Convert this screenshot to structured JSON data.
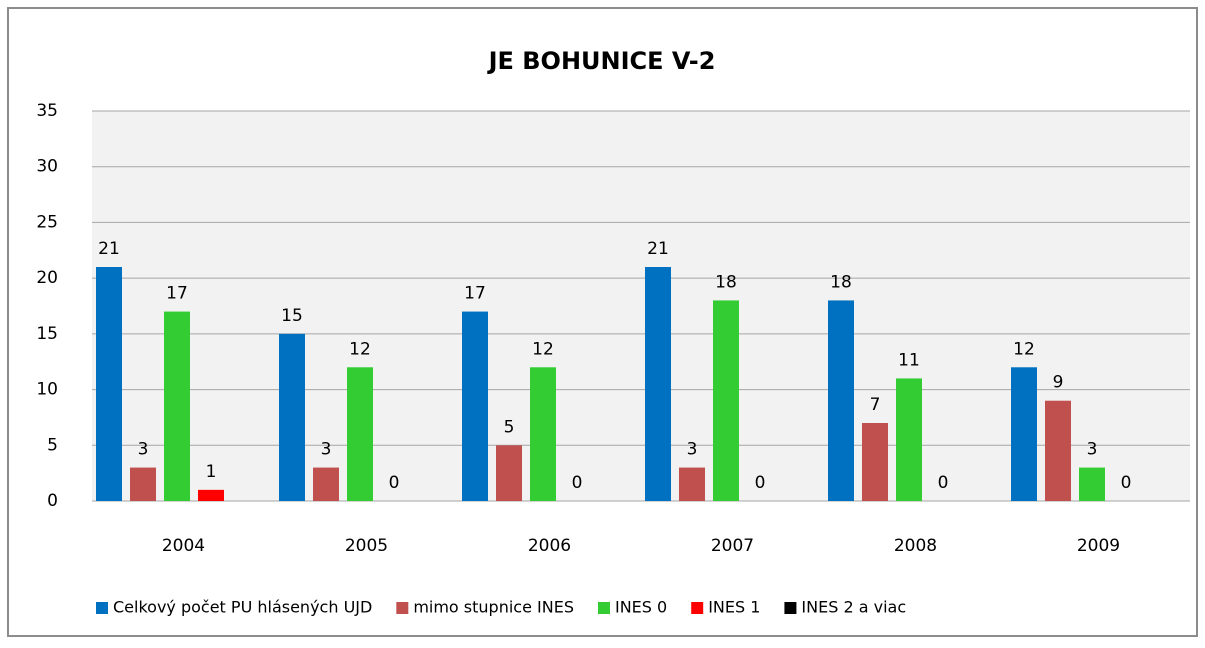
{
  "chart_data": {
    "type": "bar",
    "title": "JE BOHUNICE V-2",
    "categories": [
      "2004",
      "2005",
      "2006",
      "2007",
      "2008",
      "2009"
    ],
    "series": [
      {
        "name": "Celkový počet PU hlásených UJD",
        "color": "#0070c0",
        "values": [
          21,
          15,
          17,
          21,
          18,
          12
        ]
      },
      {
        "name": "mimo stupnice INES",
        "color": "#c0504d",
        "values": [
          3,
          3,
          5,
          3,
          7,
          9
        ]
      },
      {
        "name": "INES 0",
        "color": "#33cc33",
        "values": [
          17,
          12,
          12,
          18,
          11,
          3
        ]
      },
      {
        "name": "INES 1",
        "color": "#ff0000",
        "values": [
          1,
          0,
          0,
          0,
          0,
          0
        ]
      },
      {
        "name": "INES 2 a viac",
        "color": "#000000",
        "values": [
          null,
          null,
          null,
          null,
          null,
          null
        ]
      }
    ],
    "ylim": [
      0,
      35
    ],
    "yticks": [
      0,
      5,
      10,
      15,
      20,
      25,
      30,
      35
    ],
    "grid": true,
    "legend": "bottom"
  }
}
